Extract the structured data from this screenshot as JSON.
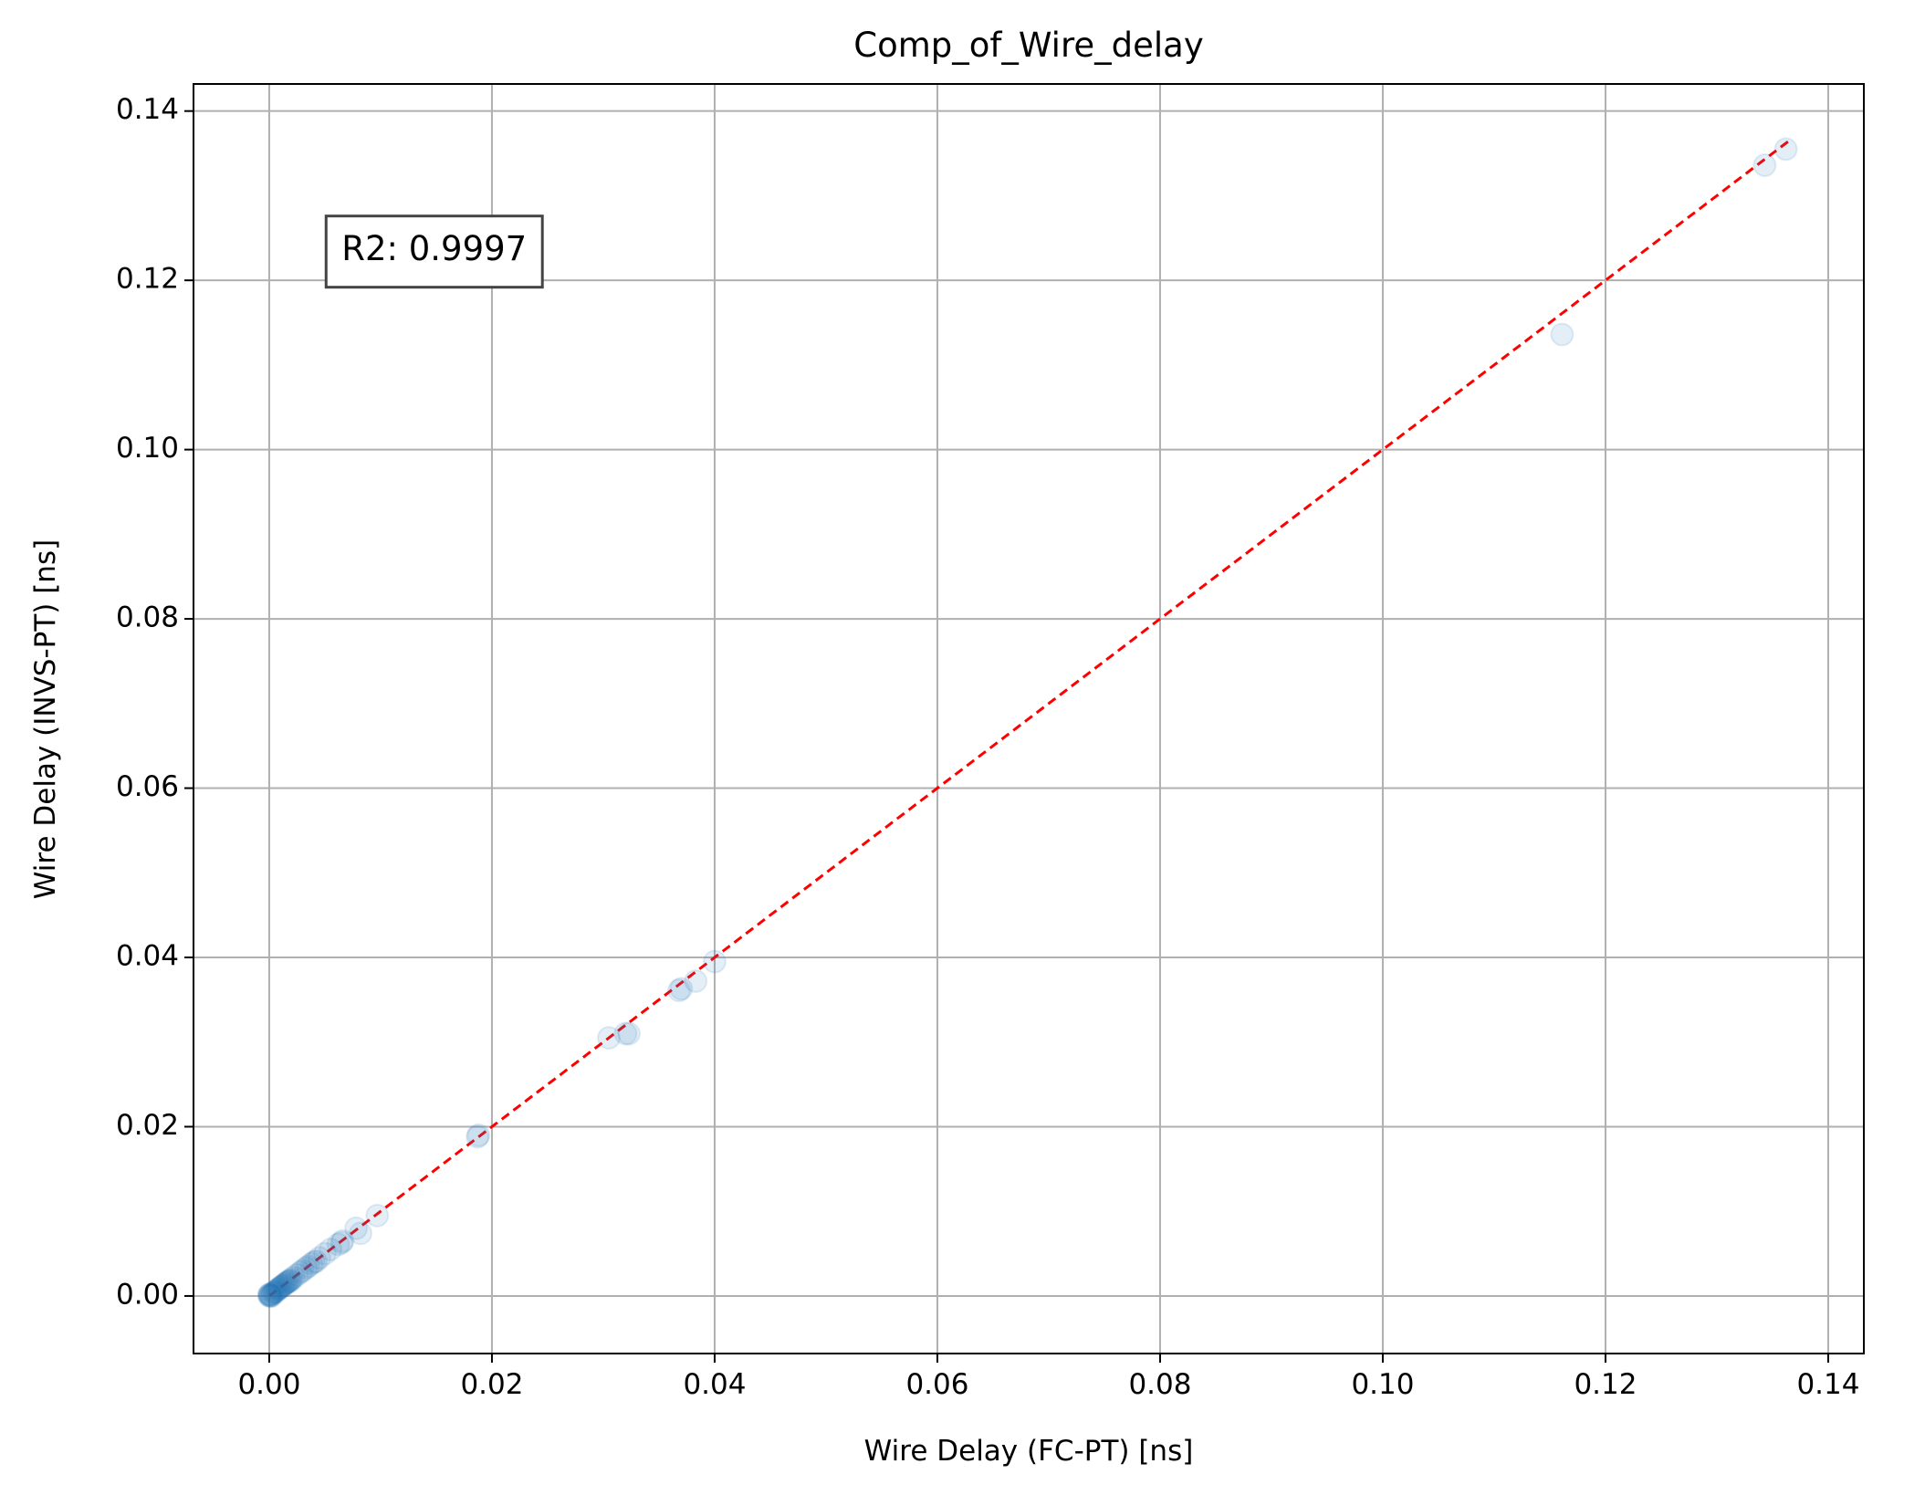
{
  "chart_data": {
    "type": "scatter",
    "title": "Comp_of_Wire_delay",
    "xlabel": "Wire Delay (FC-PT) [ns]",
    "ylabel": "Wire Delay (INVS-PT) [ns]",
    "xlim": [
      -0.0068,
      0.1432
    ],
    "ylim": [
      -0.0068,
      0.1432
    ],
    "xticks": [
      {
        "value": 0.0,
        "label": "0.00"
      },
      {
        "value": 0.02,
        "label": "0.02"
      },
      {
        "value": 0.04,
        "label": "0.04"
      },
      {
        "value": 0.06,
        "label": "0.06"
      },
      {
        "value": 0.08,
        "label": "0.08"
      },
      {
        "value": 0.1,
        "label": "0.10"
      },
      {
        "value": 0.12,
        "label": "0.12"
      },
      {
        "value": 0.14,
        "label": "0.14"
      }
    ],
    "yticks": [
      {
        "value": 0.0,
        "label": "0.00"
      },
      {
        "value": 0.02,
        "label": "0.02"
      },
      {
        "value": 0.04,
        "label": "0.04"
      },
      {
        "value": 0.06,
        "label": "0.06"
      },
      {
        "value": 0.08,
        "label": "0.08"
      },
      {
        "value": 0.1,
        "label": "0.10"
      },
      {
        "value": 0.12,
        "label": "0.12"
      },
      {
        "value": 0.14,
        "label": "0.14"
      }
    ],
    "grid": true,
    "point_color": "#1f77b4",
    "fit_line": {
      "x": [
        0.0,
        0.1365
      ],
      "y": [
        0.0,
        0.1365
      ],
      "color": "#ff0000",
      "style": "dashed"
    },
    "annotation": {
      "text": "R2: 0.9997",
      "x": 0.0065,
      "y": 0.1235
    },
    "points": [
      {
        "x": 0.0,
        "y": 0.0
      },
      {
        "x": 0.0001,
        "y": 0.0
      },
      {
        "x": 0.0,
        "y": 0.0001
      },
      {
        "x": 0.0002,
        "y": 0.0001
      },
      {
        "x": 0.0001,
        "y": 0.0002
      },
      {
        "x": 0.0003,
        "y": 0.0003
      },
      {
        "x": 0.0002,
        "y": 0.0
      },
      {
        "x": 0.0,
        "y": 0.0002
      },
      {
        "x": 0.0004,
        "y": 0.0004
      },
      {
        "x": 0.0005,
        "y": 0.0005
      },
      {
        "x": 0.0006,
        "y": 0.0005
      },
      {
        "x": 0.0007,
        "y": 0.0007
      },
      {
        "x": 0.0008,
        "y": 0.0008
      },
      {
        "x": 0.0009,
        "y": 0.0009
      },
      {
        "x": 0.001,
        "y": 0.001
      },
      {
        "x": 0.0011,
        "y": 0.0011
      },
      {
        "x": 0.0012,
        "y": 0.0012
      },
      {
        "x": 0.0013,
        "y": 0.0013
      },
      {
        "x": 0.0014,
        "y": 0.0014
      },
      {
        "x": 0.0015,
        "y": 0.0015
      },
      {
        "x": 0.0016,
        "y": 0.0016
      },
      {
        "x": 0.0017,
        "y": 0.0017
      },
      {
        "x": 0.0018,
        "y": 0.0018
      },
      {
        "x": 0.0019,
        "y": 0.0018
      },
      {
        "x": 0.002,
        "y": 0.002
      },
      {
        "x": 0.0022,
        "y": 0.0022
      },
      {
        "x": 0.0025,
        "y": 0.0025
      },
      {
        "x": 0.0028,
        "y": 0.0028
      },
      {
        "x": 0.003,
        "y": 0.003
      },
      {
        "x": 0.0033,
        "y": 0.0033
      },
      {
        "x": 0.0035,
        "y": 0.0035
      },
      {
        "x": 0.0038,
        "y": 0.0038
      },
      {
        "x": 0.004,
        "y": 0.004
      },
      {
        "x": 0.0042,
        "y": 0.0041
      },
      {
        "x": 0.0045,
        "y": 0.0045
      },
      {
        "x": 0.005,
        "y": 0.005
      },
      {
        "x": 0.0055,
        "y": 0.0055
      },
      {
        "x": 0.0062,
        "y": 0.0061
      },
      {
        "x": 0.0065,
        "y": 0.0063
      },
      {
        "x": 0.0066,
        "y": 0.0065
      },
      {
        "x": 0.0078,
        "y": 0.008
      },
      {
        "x": 0.0082,
        "y": 0.0074
      },
      {
        "x": 0.0097,
        "y": 0.0095
      },
      {
        "x": 0.0187,
        "y": 0.0188
      },
      {
        "x": 0.0188,
        "y": 0.019
      },
      {
        "x": 0.0305,
        "y": 0.0305
      },
      {
        "x": 0.032,
        "y": 0.031
      },
      {
        "x": 0.0323,
        "y": 0.031
      },
      {
        "x": 0.0368,
        "y": 0.0361
      },
      {
        "x": 0.037,
        "y": 0.0363
      },
      {
        "x": 0.0383,
        "y": 0.0372
      },
      {
        "x": 0.04,
        "y": 0.0395
      },
      {
        "x": 0.1161,
        "y": 0.1136
      },
      {
        "x": 0.1343,
        "y": 0.1336
      },
      {
        "x": 0.1362,
        "y": 0.1355
      }
    ]
  }
}
